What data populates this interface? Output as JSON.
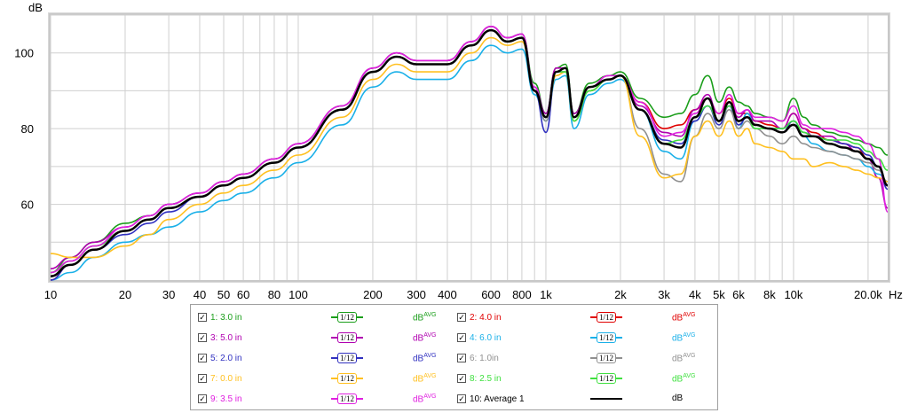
{
  "chart_data": {
    "type": "line",
    "ylabel": "dB",
    "xunit": "Hz",
    "xscale": "log",
    "xlim": [
      10,
      24000
    ],
    "ylim": [
      40,
      110
    ],
    "grid": true,
    "xticks": [
      {
        "v": 10,
        "label": "10"
      },
      {
        "v": 20,
        "label": "20"
      },
      {
        "v": 30,
        "label": "30"
      },
      {
        "v": 40,
        "label": "40"
      },
      {
        "v": 50,
        "label": "50"
      },
      {
        "v": 60,
        "label": "60"
      },
      {
        "v": 80,
        "label": "80"
      },
      {
        "v": 100,
        "label": "100"
      },
      {
        "v": 200,
        "label": "200"
      },
      {
        "v": 300,
        "label": "300"
      },
      {
        "v": 400,
        "label": "400"
      },
      {
        "v": 600,
        "label": "600"
      },
      {
        "v": 800,
        "label": "800"
      },
      {
        "v": 1000,
        "label": "1k"
      },
      {
        "v": 2000,
        "label": "2k"
      },
      {
        "v": 3000,
        "label": "3k"
      },
      {
        "v": 4000,
        "label": "4k"
      },
      {
        "v": 5000,
        "label": "5k"
      },
      {
        "v": 6000,
        "label": "6k"
      },
      {
        "v": 8000,
        "label": "8k"
      },
      {
        "v": 10000,
        "label": "10k"
      },
      {
        "v": 20000,
        "label": "20.0k"
      }
    ],
    "yticks": [
      60,
      80,
      100
    ],
    "x": [
      10,
      12,
      15,
      20,
      25,
      30,
      40,
      50,
      60,
      80,
      100,
      150,
      200,
      250,
      300,
      400,
      500,
      600,
      700,
      800,
      900,
      1000,
      1100,
      1200,
      1300,
      1500,
      1800,
      2000,
      2400,
      3000,
      3500,
      4000,
      4500,
      5000,
      5500,
      6000,
      6500,
      7000,
      8000,
      9000,
      10000,
      11000,
      12000,
      14000,
      16000,
      18000,
      20000,
      22000,
      24000
    ],
    "series": [
      {
        "name": "1: 3.0 in",
        "color": "#1a9e1a",
        "values": [
          42,
          46,
          50,
          55,
          57,
          60,
          63,
          66,
          68,
          72,
          76,
          86,
          96,
          100,
          98,
          98,
          103,
          107,
          104,
          105,
          92,
          84,
          96,
          97,
          84,
          92,
          94,
          95,
          88,
          83,
          84,
          89,
          94,
          87,
          91,
          87,
          86,
          84,
          83,
          82,
          88,
          83,
          81,
          79,
          78,
          77,
          76,
          75,
          73
        ]
      },
      {
        "name": "2: 4.0 in",
        "color": "#e00000",
        "values": [
          40,
          44,
          48,
          53,
          56,
          59,
          62,
          65,
          67,
          71,
          75,
          85,
          95,
          99,
          97,
          97,
          102,
          106,
          103,
          104,
          90,
          83,
          95,
          96,
          83,
          91,
          93,
          94,
          87,
          80,
          81,
          85,
          88,
          84,
          88,
          84,
          84,
          82,
          81,
          80,
          84,
          80,
          79,
          77,
          76,
          75,
          72,
          70,
          65
        ]
      },
      {
        "name": "3: 5.0 in",
        "color": "#b000b0",
        "values": [
          43,
          46,
          50,
          54,
          57,
          60,
          63,
          66,
          68,
          72,
          76,
          86,
          96,
          100,
          98,
          98,
          103,
          107,
          104,
          105,
          91,
          84,
          96,
          96,
          84,
          91,
          93,
          94,
          86,
          79,
          78,
          85,
          89,
          82,
          87,
          83,
          85,
          82,
          82,
          80,
          84,
          80,
          78,
          78,
          76,
          74,
          72,
          67,
          59
        ]
      },
      {
        "name": "4: 6.0 in",
        "color": "#1ab0e8",
        "values": [
          38,
          42,
          46,
          50,
          52,
          54,
          58,
          61,
          63,
          67,
          71,
          81,
          91,
          95,
          93,
          93,
          98,
          102,
          100,
          101,
          89,
          82,
          93,
          94,
          80,
          89,
          92,
          93,
          85,
          74,
          72,
          82,
          86,
          82,
          86,
          80,
          84,
          81,
          80,
          80,
          82,
          78,
          76,
          74,
          73,
          72,
          70,
          68,
          66
        ]
      },
      {
        "name": "5: 2.0 in",
        "color": "#3030c0",
        "values": [
          40,
          44,
          48,
          52,
          55,
          58,
          62,
          65,
          67,
          71,
          75,
          85,
          95,
          99,
          97,
          97,
          102,
          106,
          103,
          104,
          90,
          79,
          95,
          95,
          82,
          90,
          93,
          94,
          85,
          77,
          76,
          82,
          86,
          81,
          86,
          81,
          83,
          81,
          80,
          79,
          82,
          79,
          78,
          77,
          76,
          75,
          73,
          70,
          64
        ]
      },
      {
        "name": "6: 1.0in",
        "color": "#909090",
        "values": [
          41,
          45,
          49,
          53,
          56,
          59,
          62,
          65,
          67,
          71,
          75,
          85,
          95,
          99,
          97,
          97,
          102,
          106,
          103,
          104,
          90,
          82,
          94,
          95,
          82,
          90,
          93,
          94,
          80,
          68,
          66,
          78,
          84,
          80,
          85,
          80,
          82,
          80,
          78,
          76,
          78,
          76,
          75,
          74,
          73,
          72,
          71,
          69,
          66
        ]
      },
      {
        "name": "7: 0.0 in",
        "color": "#ffc020",
        "values": [
          47,
          46,
          46,
          49,
          52,
          56,
          60,
          63,
          65,
          69,
          73,
          83,
          93,
          97,
          95,
          95,
          100,
          104,
          102,
          103,
          90,
          83,
          94,
          95,
          82,
          90,
          93,
          94,
          78,
          67,
          68,
          78,
          82,
          78,
          82,
          78,
          80,
          76,
          75,
          74,
          72,
          72,
          70,
          71,
          70,
          69,
          68,
          67,
          66
        ]
      },
      {
        "name": "8: 2.5 in",
        "color": "#40e040",
        "values": [
          42,
          45,
          49,
          53,
          56,
          59,
          62,
          65,
          67,
          71,
          75,
          85,
          95,
          99,
          97,
          97,
          102,
          106,
          103,
          104,
          90,
          83,
          95,
          95,
          82,
          90,
          93,
          94,
          85,
          76,
          77,
          83,
          86,
          82,
          86,
          82,
          83,
          80,
          80,
          80,
          82,
          79,
          78,
          77,
          77,
          76,
          74,
          72,
          69
        ]
      },
      {
        "name": "9: 3.5 in",
        "color": "#e020e0",
        "values": [
          42,
          45,
          49,
          54,
          57,
          60,
          63,
          66,
          68,
          72,
          76,
          86,
          96,
          100,
          98,
          98,
          103,
          107,
          104,
          105,
          91,
          83,
          95,
          96,
          83,
          91,
          94,
          94,
          87,
          78,
          79,
          84,
          88,
          84,
          89,
          84,
          85,
          83,
          83,
          82,
          86,
          81,
          80,
          80,
          79,
          78,
          76,
          72,
          58
        ]
      },
      {
        "name": "10: Average 1",
        "color": "#000000",
        "values": [
          41,
          44,
          48,
          53,
          56,
          59,
          62,
          65,
          67,
          71,
          75,
          85,
          95,
          99,
          97,
          97,
          102,
          106,
          103,
          104,
          90,
          83,
          95,
          96,
          83,
          91,
          93,
          94,
          85,
          76,
          75,
          83,
          88,
          82,
          87,
          82,
          83,
          81,
          80,
          79,
          81,
          78,
          78,
          76,
          75,
          74,
          72,
          70,
          65
        ]
      }
    ]
  },
  "legend": {
    "items": [
      {
        "label": "1: 3.0 in",
        "color": "#1a9e1a",
        "smoothing": "1/12",
        "unit": "dB",
        "unit_sup": "AVG"
      },
      {
        "label": "2: 4.0 in",
        "color": "#e00000",
        "smoothing": "1/12",
        "unit": "dB",
        "unit_sup": "AVG"
      },
      {
        "label": "3: 5.0 in",
        "color": "#b000b0",
        "smoothing": "1/12",
        "unit": "dB",
        "unit_sup": "AVG"
      },
      {
        "label": "4: 6.0 in",
        "color": "#1ab0e8",
        "smoothing": "1/12",
        "unit": "dB",
        "unit_sup": "AVG"
      },
      {
        "label": "5: 2.0 in",
        "color": "#3030c0",
        "smoothing": "1/12",
        "unit": "dB",
        "unit_sup": "AVG"
      },
      {
        "label": "6: 1.0in",
        "color": "#909090",
        "smoothing": "1/12",
        "unit": "dB",
        "unit_sup": "AVG"
      },
      {
        "label": "7: 0.0 in",
        "color": "#ffc020",
        "smoothing": "1/12",
        "unit": "dB",
        "unit_sup": "AVG"
      },
      {
        "label": "8: 2.5 in",
        "color": "#40e040",
        "smoothing": "1/12",
        "unit": "dB",
        "unit_sup": "AVG"
      },
      {
        "label": "9: 3.5 in",
        "color": "#e020e0",
        "smoothing": "1/12",
        "unit": "dB",
        "unit_sup": "AVG"
      },
      {
        "label": "10: Average 1",
        "color": "#000000",
        "smoothing": "",
        "unit": "dB",
        "unit_sup": ""
      }
    ],
    "check_glyph": "✓"
  }
}
